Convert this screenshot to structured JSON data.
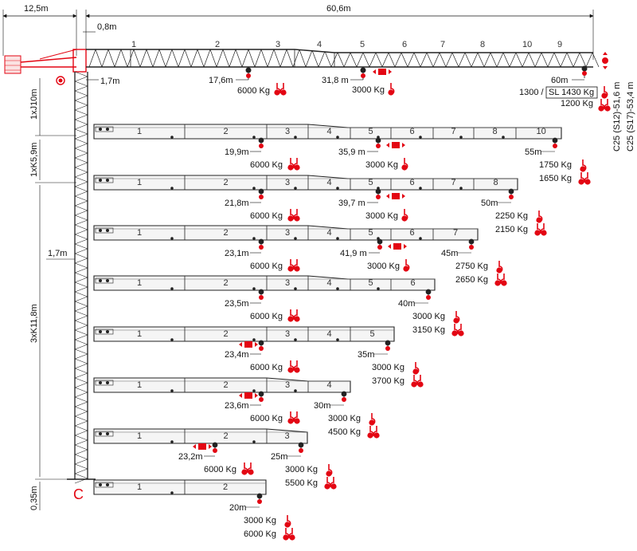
{
  "colors": {
    "accent": "#e30613",
    "structure": "#222222",
    "boom_fill": "#f5f5f5"
  },
  "top_dims": {
    "counter_jib": "12,5m",
    "jib": "60,6m",
    "mast_offset": "0,8m",
    "pivot_offset": "1,7m"
  },
  "mast_dims": [
    "1xJ10m",
    "1xK5,9m",
    "1,7m",
    "3xK11,8m",
    "0,35m"
  ],
  "mast_code": "C",
  "side_labels": [
    "C25 (S12)-51,6 m",
    "C25 (S17)-53,4 m"
  ],
  "top_boom": {
    "segments": [
      "1",
      "2",
      "3",
      "4",
      "5",
      "6",
      "7",
      "8",
      "10",
      "9"
    ],
    "p1": "17,6m",
    "p1_load": "6000 Kg",
    "p2": "31,8 m",
    "p2_load": "3000 Kg",
    "tip": "60m",
    "tip_load_a": "1300 /",
    "tip_load_b": "SL 1430 Kg",
    "tip_load_c": "1200 Kg"
  },
  "booms": [
    {
      "segments": [
        "1",
        "2",
        "3",
        "4",
        "5",
        "6",
        "7",
        "8",
        "10"
      ],
      "p1": "19,9m",
      "p1_load": "6000 Kg",
      "p2": "35,9 m",
      "p2_load": "3000 Kg",
      "tip": "55m",
      "tip_load_a": "1750 Kg",
      "tip_load_b": "1650 Kg"
    },
    {
      "segments": [
        "1",
        "2",
        "3",
        "4",
        "5",
        "6",
        "7",
        "8"
      ],
      "p1": "21,8m",
      "p1_load": "6000 Kg",
      "p2": "39,7 m",
      "p2_load": "3000 Kg",
      "tip": "50m",
      "tip_load_a": "2250 Kg",
      "tip_load_b": "2150 Kg"
    },
    {
      "segments": [
        "1",
        "2",
        "3",
        "4",
        "5",
        "6",
        "7"
      ],
      "p1": "23,1m",
      "p1_load": "6000 Kg",
      "p2": "41,9 m",
      "p2_load": "3000 Kg",
      "tip": "45m",
      "tip_load_a": "2750 Kg",
      "tip_load_b": "2650 Kg"
    },
    {
      "segments": [
        "1",
        "2",
        "3",
        "4",
        "5",
        "6"
      ],
      "p1": "23,5m",
      "p1_load": "6000 Kg",
      "tip": "40m",
      "tip_load_a": "3000 Kg",
      "tip_load_b": "3150 Kg"
    },
    {
      "segments": [
        "1",
        "2",
        "3",
        "4",
        "5"
      ],
      "p1": "23,4m",
      "p1_load": "6000 Kg",
      "tip": "35m",
      "tip_load_a": "3000 Kg",
      "tip_load_b": "3700 Kg"
    },
    {
      "segments": [
        "1",
        "2",
        "3",
        "4"
      ],
      "p1": "23,6m",
      "p1_load": "6000 Kg",
      "tip": "30m",
      "tip_load_a": "3000 Kg",
      "tip_load_b": "4500 Kg"
    },
    {
      "segments": [
        "1",
        "2",
        "3"
      ],
      "p1": "23,2m",
      "p1_load": "6000 Kg",
      "tip": "25m",
      "tip_load_a": "3000 Kg",
      "tip_load_b": "5500 Kg"
    },
    {
      "segments": [
        "1",
        "2"
      ],
      "tip": "20m",
      "tip_load_a": "3000 Kg",
      "tip_load_b": "6000 Kg"
    }
  ]
}
